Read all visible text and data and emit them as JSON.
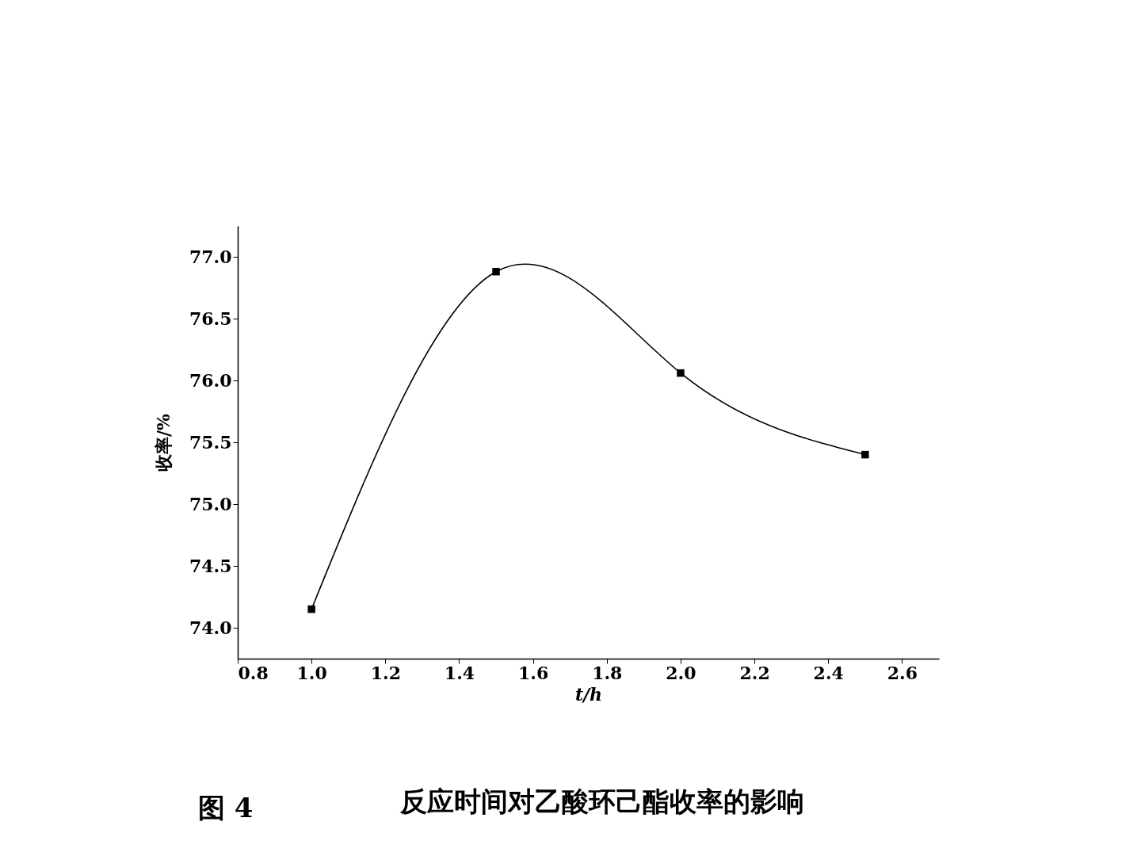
{
  "chart_data": {
    "type": "line",
    "title": "反应时间对乙酸环己酯收率的影响",
    "annotations": [
      "图 4"
    ],
    "xlabel": "t/h",
    "ylabel": "收率/%",
    "x": [
      1.0,
      1.5,
      2.0,
      2.5
    ],
    "series": [
      {
        "color": "#000000",
        "values": [
          74.15,
          76.88,
          76.06,
          75.4
        ]
      }
    ],
    "xlim": [
      0.8,
      2.7
    ],
    "xticks": [
      0.8,
      {
        "value": 1,
        "label": "1.0"
      },
      1.2,
      1.4,
      1.6,
      1.8,
      {
        "value": 2,
        "label": "2.0"
      },
      2.2,
      2.4,
      2.6
    ],
    "ylim": [
      73.75,
      77.25
    ],
    "yticks": [
      {
        "value": 74,
        "label": "74.0"
      },
      {
        "value": 74.5,
        "label": "74.5"
      },
      {
        "value": 75,
        "label": "75.0"
      },
      {
        "value": 75.5,
        "label": "75.5"
      },
      {
        "value": 76,
        "label": "76.0"
      },
      {
        "value": 76.5,
        "label": "76.5"
      },
      {
        "value": 77,
        "label": "77.0"
      }
    ],
    "marker": "square",
    "grid": false
  }
}
